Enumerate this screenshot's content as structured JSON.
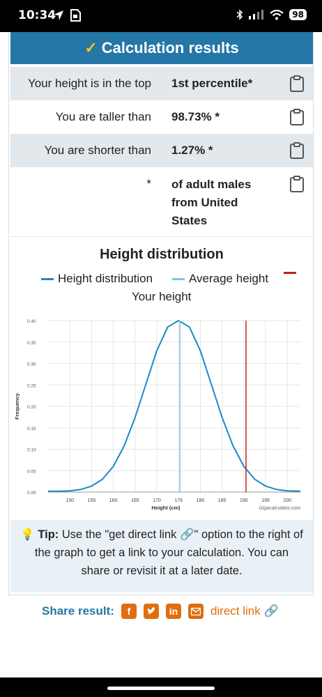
{
  "status_bar": {
    "time": "10:34",
    "battery": "98"
  },
  "header": {
    "title": "Calculation results"
  },
  "results": [
    {
      "label": "Your height is in the top",
      "value": "1st percentile*"
    },
    {
      "label": "You are taller than",
      "value": "98.73% *"
    },
    {
      "label": "You are shorter than",
      "value": "1.27% *"
    }
  ],
  "footnote": {
    "marker": "*",
    "lines": [
      "of adult males",
      "from United",
      "States"
    ]
  },
  "chart_data": {
    "type": "line",
    "title": "Height distribution",
    "xlabel": "Height (cm)",
    "ylabel": "Frequency",
    "xlim": [
      145,
      203
    ],
    "ylim": [
      0,
      0.4
    ],
    "x_ticks": [
      150,
      155,
      160,
      165,
      170,
      175,
      180,
      185,
      190,
      195,
      200
    ],
    "y_ticks": [
      0.0,
      0.05,
      0.1,
      0.15,
      0.2,
      0.25,
      0.3,
      0.35,
      0.4
    ],
    "x_tick_labels": [
      "150",
      "155",
      "160",
      "165",
      "170",
      "175",
      "180",
      "185",
      "190",
      "195",
      "200"
    ],
    "y_tick_labels": [
      "0.00",
      "0.05",
      "0.10",
      "0.15",
      "0.20",
      "0.25",
      "0.30",
      "0.35",
      "0.40"
    ],
    "legend": [
      {
        "name": "Height distribution",
        "color": "#1a8ac4"
      },
      {
        "name": "Average height",
        "color": "#7cc6e0"
      },
      {
        "name": "Your height",
        "color": "#c0201a"
      }
    ],
    "series": [
      {
        "name": "Height distribution",
        "x": [
          145,
          147.5,
          150,
          152.5,
          155,
          157.5,
          160,
          162.5,
          165,
          167.5,
          170,
          172.5,
          175,
          177.5,
          180,
          182.5,
          185,
          187.5,
          190,
          192.5,
          195,
          197.5,
          200,
          203
        ],
        "y": [
          0.002,
          0.002,
          0.003,
          0.006,
          0.014,
          0.03,
          0.06,
          0.108,
          0.174,
          0.252,
          0.33,
          0.385,
          0.4,
          0.385,
          0.33,
          0.252,
          0.174,
          0.108,
          0.06,
          0.03,
          0.014,
          0.006,
          0.003,
          0.002
        ]
      }
    ],
    "average_height": 175.3,
    "your_height": 190.5,
    "watermark": "Gigacalculator.com"
  },
  "tip": {
    "bold": "Tip:",
    "text": "Use the \"get direct link 🔗\" option to the right of the graph to get a link to your calculation. You can share or revisit it at a later date."
  },
  "share": {
    "label": "Share result:",
    "direct_link": "direct link"
  }
}
